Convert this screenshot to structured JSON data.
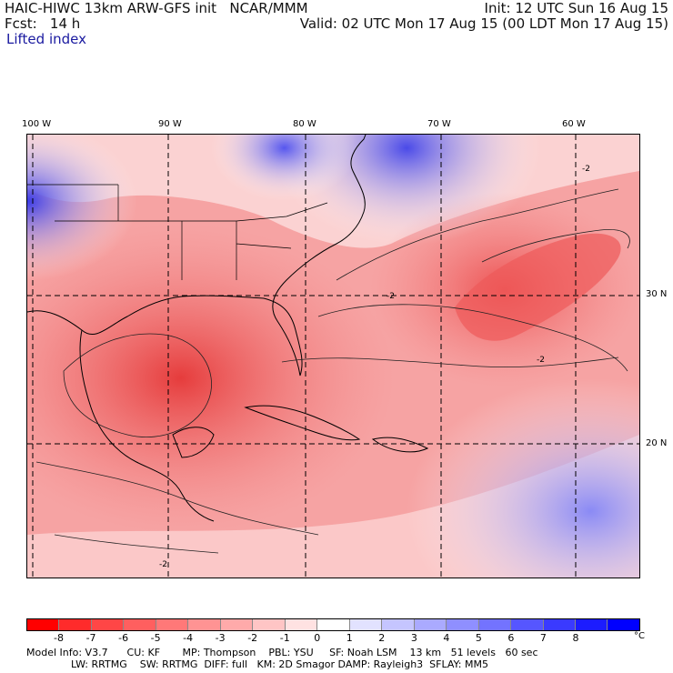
{
  "header": {
    "model_line": "HAIC-HIWC 13km ARW-GFS init   NCAR/MMM",
    "fcst_line": "Fcst:   14 h",
    "field_name": "Lifted index",
    "init_line": "Init: 12 UTC Sun 16 Aug 15",
    "valid_line": "Valid: 02 UTC Mon 17 Aug 15 (00 LDT Mon 17 Aug 15)"
  },
  "map": {
    "lon_labels": [
      "100 W",
      "90 W",
      "80 W",
      "70 W",
      "60 W"
    ],
    "lat_labels": [
      "30 N",
      "20 N"
    ],
    "contour_label": "-2",
    "colors": {
      "water_warm": "#f27f7f",
      "deep_warm": "#e23a3a",
      "land_line": "#000000",
      "cool": "#6b6bf0",
      "deep_cool": "#2b2bdd",
      "neutral": "#ffffff"
    }
  },
  "colorbar": {
    "ticks": [
      "-8",
      "-7",
      "-6",
      "-5",
      "-4",
      "-3",
      "-2",
      "-1",
      "0",
      "1",
      "2",
      "3",
      "4",
      "5",
      "6",
      "7",
      "8"
    ],
    "unit": "°C",
    "colors": [
      "#ff0000",
      "#ff2b2b",
      "#ff4646",
      "#ff5f5f",
      "#ff7878",
      "#ff9393",
      "#ffaaaa",
      "#ffc5c5",
      "#ffe2e2",
      "#ffffff",
      "#e2e2ff",
      "#c5c5ff",
      "#aaaaff",
      "#8f8fff",
      "#7373ff",
      "#5656ff",
      "#3a3aff",
      "#1c1cff",
      "#0000ff"
    ]
  },
  "model_info": {
    "line1": "Model Info: V3.7      CU: KF       MP: Thompson    PBL: YSU     SF: Noah LSM    13 km   51 levels   60 sec",
    "line2": "              LW: RRTMG    SW: RRTMG  DIFF: full   KM: 2D Smagor DAMP: Rayleigh3  SFLAY: MM5"
  }
}
